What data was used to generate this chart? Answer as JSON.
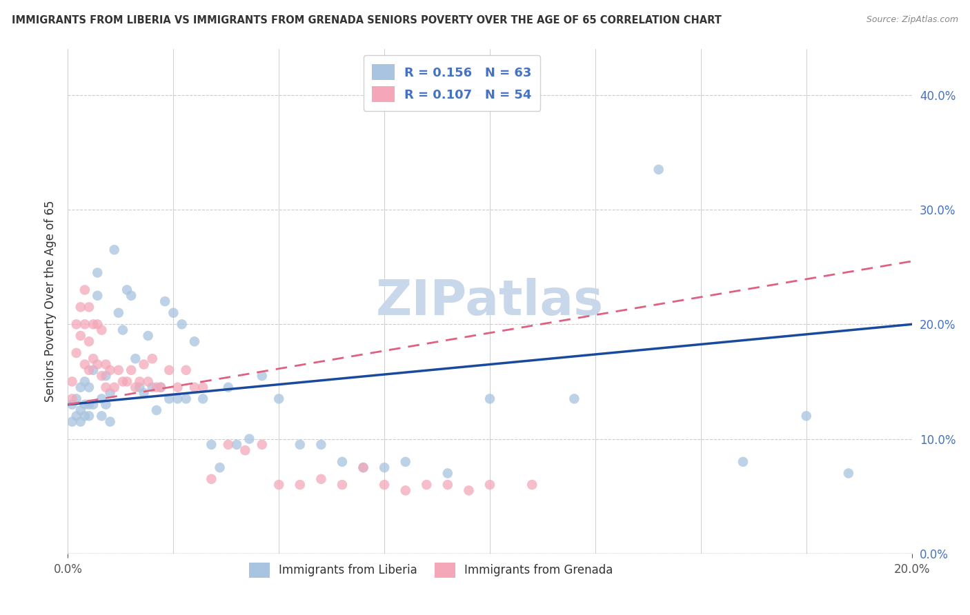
{
  "title": "IMMIGRANTS FROM LIBERIA VS IMMIGRANTS FROM GRENADA SENIORS POVERTY OVER THE AGE OF 65 CORRELATION CHART",
  "source": "Source: ZipAtlas.com",
  "ylabel": "Seniors Poverty Over the Age of 65",
  "legend_label_1": "Immigrants from Liberia",
  "legend_label_2": "Immigrants from Grenada",
  "R1": 0.156,
  "N1": 63,
  "R2": 0.107,
  "N2": 54,
  "color1": "#a8c4e0",
  "color2": "#f4a7b9",
  "trend1_color": "#1a4a9e",
  "trend2_color": "#e06080",
  "xlim": [
    0.0,
    0.2
  ],
  "ylim": [
    0.0,
    0.44
  ],
  "x_ticks": [
    0.0,
    0.2
  ],
  "y_ticks": [
    0.1,
    0.2,
    0.3,
    0.4
  ],
  "watermark": "ZIPatlas",
  "watermark_color": "#c8d8ea",
  "background_color": "#ffffff",
  "liberia_x": [
    0.001,
    0.001,
    0.002,
    0.002,
    0.003,
    0.003,
    0.003,
    0.004,
    0.004,
    0.004,
    0.005,
    0.005,
    0.005,
    0.006,
    0.006,
    0.007,
    0.007,
    0.008,
    0.008,
    0.009,
    0.009,
    0.01,
    0.01,
    0.011,
    0.012,
    0.013,
    0.014,
    0.015,
    0.016,
    0.017,
    0.018,
    0.019,
    0.02,
    0.021,
    0.022,
    0.023,
    0.024,
    0.025,
    0.026,
    0.027,
    0.028,
    0.03,
    0.032,
    0.034,
    0.036,
    0.038,
    0.04,
    0.043,
    0.046,
    0.05,
    0.055,
    0.06,
    0.065,
    0.07,
    0.075,
    0.08,
    0.09,
    0.1,
    0.12,
    0.14,
    0.16,
    0.175,
    0.185
  ],
  "liberia_y": [
    0.13,
    0.115,
    0.135,
    0.12,
    0.145,
    0.125,
    0.115,
    0.15,
    0.13,
    0.12,
    0.145,
    0.13,
    0.12,
    0.16,
    0.13,
    0.245,
    0.225,
    0.135,
    0.12,
    0.155,
    0.13,
    0.14,
    0.115,
    0.265,
    0.21,
    0.195,
    0.23,
    0.225,
    0.17,
    0.145,
    0.14,
    0.19,
    0.145,
    0.125,
    0.145,
    0.22,
    0.135,
    0.21,
    0.135,
    0.2,
    0.135,
    0.185,
    0.135,
    0.095,
    0.075,
    0.145,
    0.095,
    0.1,
    0.155,
    0.135,
    0.095,
    0.095,
    0.08,
    0.075,
    0.075,
    0.08,
    0.07,
    0.135,
    0.135,
    0.335,
    0.08,
    0.12,
    0.07
  ],
  "grenada_x": [
    0.001,
    0.001,
    0.002,
    0.002,
    0.003,
    0.003,
    0.004,
    0.004,
    0.004,
    0.005,
    0.005,
    0.005,
    0.006,
    0.006,
    0.007,
    0.007,
    0.008,
    0.008,
    0.009,
    0.009,
    0.01,
    0.011,
    0.012,
    0.013,
    0.014,
    0.015,
    0.016,
    0.017,
    0.018,
    0.019,
    0.02,
    0.021,
    0.022,
    0.024,
    0.026,
    0.028,
    0.03,
    0.032,
    0.034,
    0.038,
    0.042,
    0.046,
    0.05,
    0.055,
    0.06,
    0.065,
    0.07,
    0.075,
    0.08,
    0.085,
    0.09,
    0.095,
    0.1,
    0.11
  ],
  "grenada_y": [
    0.15,
    0.135,
    0.2,
    0.175,
    0.215,
    0.19,
    0.23,
    0.2,
    0.165,
    0.215,
    0.185,
    0.16,
    0.2,
    0.17,
    0.2,
    0.165,
    0.195,
    0.155,
    0.165,
    0.145,
    0.16,
    0.145,
    0.16,
    0.15,
    0.15,
    0.16,
    0.145,
    0.15,
    0.165,
    0.15,
    0.17,
    0.145,
    0.145,
    0.16,
    0.145,
    0.16,
    0.145,
    0.145,
    0.065,
    0.095,
    0.09,
    0.095,
    0.06,
    0.06,
    0.065,
    0.06,
    0.075,
    0.06,
    0.055,
    0.06,
    0.06,
    0.055,
    0.06,
    0.06
  ]
}
